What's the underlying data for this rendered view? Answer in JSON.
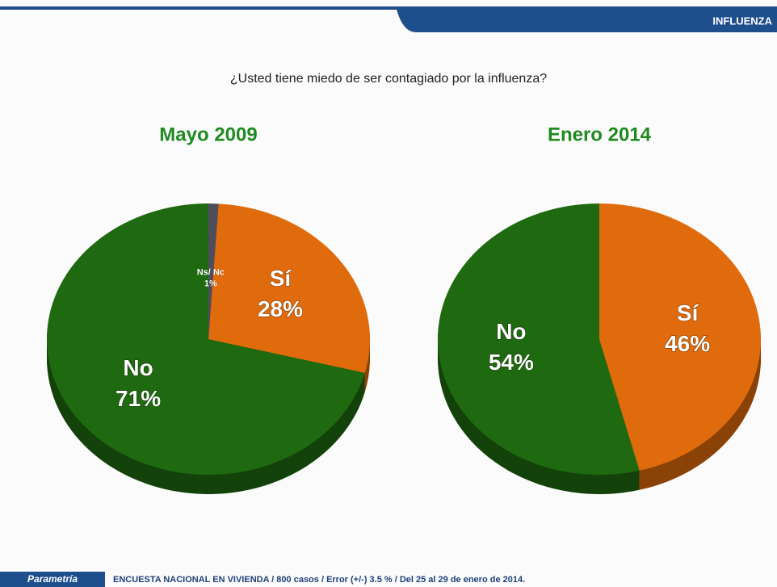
{
  "header": "INFLUENZA",
  "question": "¿Usted tiene miedo de ser contagiado por la influenza?",
  "logo": "Parametría",
  "footer": "ENCUESTA NACIONAL EN VIVIENDA / 800 casos / Error (+/-) 3.5 % / Del 25 al 29 de enero de 2014.",
  "chart_data": [
    {
      "type": "pie",
      "title": "Mayo 2009",
      "categories": [
        "No",
        "Sí",
        "Ns/ Nc"
      ],
      "values": [
        71,
        28,
        1
      ],
      "value_labels": [
        "71%",
        "28%",
        "1%"
      ],
      "colors": [
        "#1f6a10",
        "#e06b0c",
        "#4d4d5c"
      ]
    },
    {
      "type": "pie",
      "title": "Enero 2014",
      "categories": [
        "No",
        "Sí"
      ],
      "values": [
        54,
        46
      ],
      "value_labels": [
        "54%",
        "46%"
      ],
      "colors": [
        "#1f6a10",
        "#e06b0c"
      ]
    }
  ]
}
